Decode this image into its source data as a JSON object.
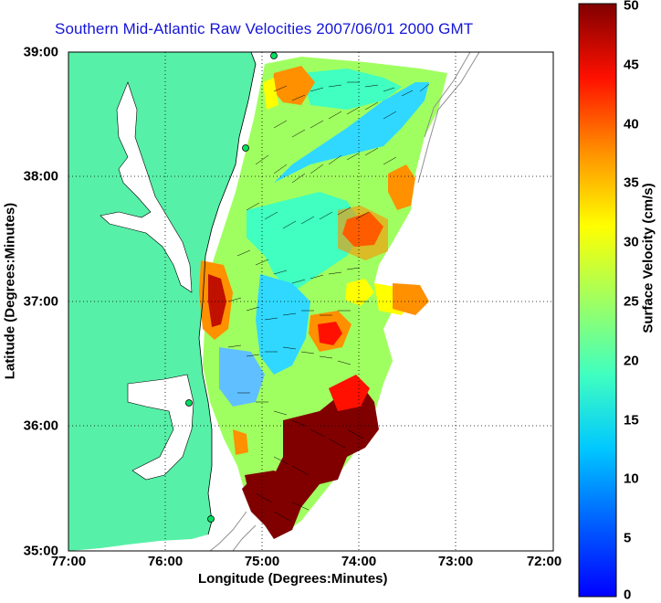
{
  "title": "Southern Mid-Atlantic Raw Velocities 2007/06/01 2000 GMT",
  "x_axis": {
    "label": "Longitude (Degrees:Minutes)",
    "ticks": [
      "77:00",
      "76:00",
      "75:00",
      "74:00",
      "73:00",
      "72:00"
    ]
  },
  "y_axis": {
    "label": "Latitude (Degrees:Minutes)",
    "ticks": [
      "39:00",
      "38:00",
      "37:00",
      "36:00",
      "35:00"
    ]
  },
  "colorbar": {
    "label": "Surface Velocity (cm/s)",
    "ticks": [
      "50",
      "45",
      "40",
      "35",
      "30",
      "25",
      "20",
      "15",
      "10",
      "5",
      "0"
    ],
    "min": 0,
    "max": 50,
    "colormap": "jet"
  },
  "map": {
    "extent": {
      "lon": [
        -77,
        -72
      ],
      "lat": [
        35,
        39
      ]
    },
    "land_color": "#57f0a8",
    "grid": "dotted"
  }
}
